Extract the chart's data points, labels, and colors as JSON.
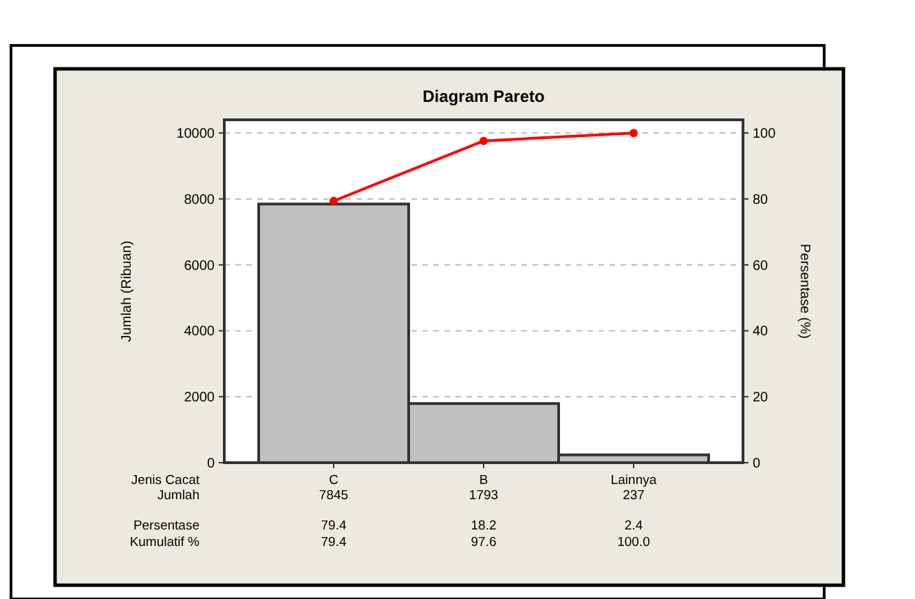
{
  "chart_data": {
    "type": "bar",
    "title": "Diagram Pareto",
    "xlabel": "Jenis Cacat",
    "ylabel": "Jumlah (Ribuan)",
    "y2label": "Persentase (%)",
    "categories": [
      "C",
      "B",
      "Lainnya"
    ],
    "series": [
      {
        "color": "#c0c0c0",
        "values": [
          7845,
          1793,
          237
        ],
        "value_labels": [
          "7845",
          "1793",
          "237"
        ]
      },
      {
        "type": "line",
        "axis": "y2",
        "color": "#ff0000",
        "values": [
          79.4,
          97.6,
          100.0
        ],
        "value_labels": [
          "79.4",
          "97.6",
          "100.0"
        ]
      }
    ],
    "annotations": [
      "Jumlah",
      "Persentase",
      "79.4",
      "18.2",
      "2.4",
      "Kumulatif %"
    ],
    "ylim": [
      0,
      10400
    ],
    "yticks": [
      0,
      2000,
      4000,
      6000,
      8000,
      10000
    ],
    "y2lim": [
      0,
      104
    ],
    "y2ticks": [
      0,
      20,
      40,
      60,
      80,
      100
    ],
    "grid": "y",
    "marker": "circle",
    "line_style": "solid"
  }
}
